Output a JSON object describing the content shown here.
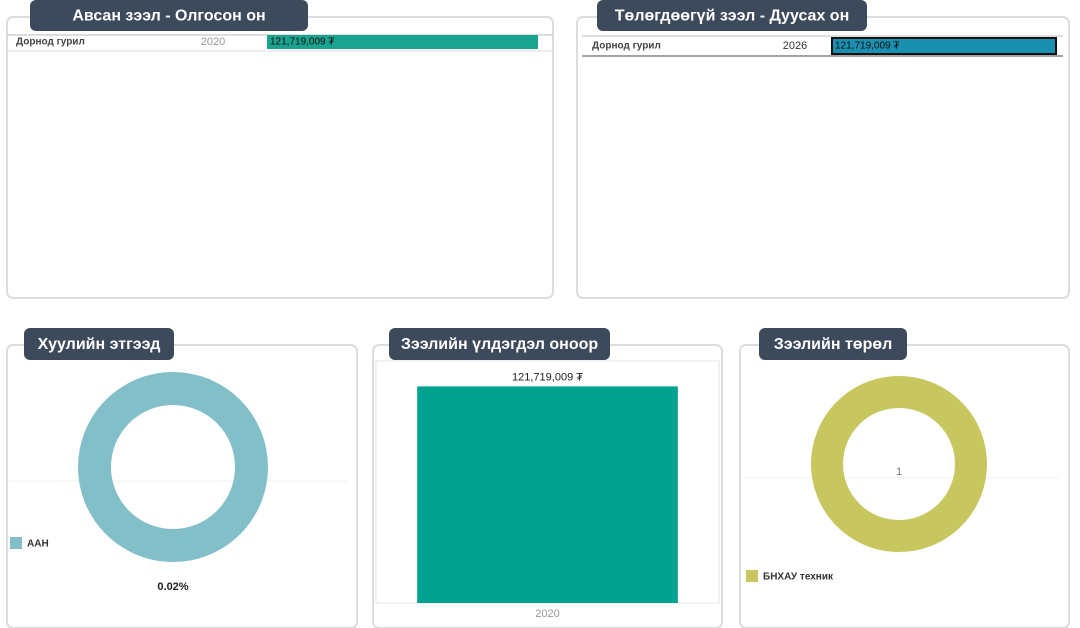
{
  "chart_data": [
    {
      "type": "tablebar",
      "title": "Авсан зээл - Олгосон он",
      "categories": [
        "Дорнод гурил"
      ],
      "years": [
        "2020"
      ],
      "values": [
        121719009
      ],
      "value_labels": [
        "121,719,009 ₮"
      ],
      "xlim": [
        0,
        121719009
      ],
      "color": "#1aa38f"
    },
    {
      "type": "tablebar",
      "title": "Төлөгдөөгүй зээл - Дуусах он",
      "categories": [
        "Дорнод гурил"
      ],
      "years": [
        "2026"
      ],
      "values": [
        121719009
      ],
      "value_labels": [
        "121,719,009 ₮"
      ],
      "xlim": [
        0,
        121719009
      ],
      "color": "#1a8fb0"
    },
    {
      "type": "donut",
      "title": "Хуулийн этгээд",
      "categories": [
        "ААН"
      ],
      "values": [
        0.02
      ],
      "value_labels": [
        "0.02%"
      ],
      "color": "#82bfc8"
    },
    {
      "type": "bar",
      "title": "Зээлийн үлдэгдэл оноор",
      "categories": [
        "2020"
      ],
      "values": [
        121719009
      ],
      "value_labels": [
        "121,719,009 ₮"
      ],
      "ylim": [
        0,
        136000000
      ],
      "color": "#00a38f"
    },
    {
      "type": "donut",
      "title": "Зээлийн төрөл",
      "categories": [
        "БНХАУ техник"
      ],
      "values": [
        1
      ],
      "color": "#c8c65e"
    }
  ]
}
